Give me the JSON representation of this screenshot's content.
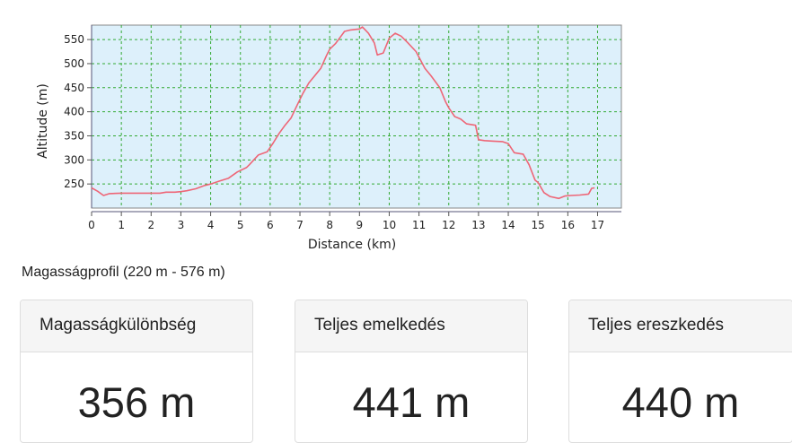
{
  "chart_data": {
    "type": "line",
    "xlabel": "Distance (km)",
    "ylabel": "Altitude (m)",
    "xlim": [
      0,
      17.8
    ],
    "ylim": [
      200,
      580
    ],
    "x_ticks": [
      0,
      1,
      2,
      3,
      4,
      5,
      6,
      7,
      8,
      9,
      10,
      11,
      12,
      13,
      14,
      15,
      16,
      17
    ],
    "y_ticks": [
      250,
      300,
      350,
      400,
      450,
      500,
      550
    ],
    "grid": true,
    "background_color": "#ddf0fb",
    "line_color": "#ee6677",
    "grid_color": "#33aa33",
    "series": [
      {
        "x": [
          0.0,
          0.2,
          0.4,
          0.6,
          1.0,
          1.4,
          1.6,
          2.0,
          2.3,
          2.5,
          2.8,
          3.0,
          3.2,
          3.5,
          3.8,
          4.0,
          4.3,
          4.6,
          4.9,
          5.2,
          5.3,
          5.6,
          5.9,
          6.1,
          6.3,
          6.5,
          6.7,
          6.9,
          7.1,
          7.3,
          7.5,
          7.7,
          7.9,
          8.0,
          8.2,
          8.5,
          8.7,
          9.0,
          9.1,
          9.3,
          9.5,
          9.6,
          9.8,
          10.0,
          10.2,
          10.4,
          10.6,
          10.9,
          11.2,
          11.4,
          11.7,
          11.9,
          12.0,
          12.2,
          12.4,
          12.6,
          12.9,
          13.0,
          13.2,
          13.5,
          13.8,
          14.0,
          14.2,
          14.5,
          14.7,
          14.9,
          15.0,
          15.2,
          15.4,
          15.7,
          15.9,
          16.1,
          16.4,
          16.7,
          16.8,
          16.9
        ],
        "y": [
          242,
          235,
          226,
          230,
          231,
          231,
          231,
          231,
          231,
          233,
          233,
          234,
          236,
          240,
          247,
          250,
          256,
          262,
          275,
          284,
          290,
          310,
          317,
          335,
          355,
          372,
          387,
          413,
          438,
          460,
          475,
          490,
          518,
          530,
          542,
          567,
          570,
          572,
          576,
          563,
          543,
          518,
          522,
          553,
          563,
          557,
          545,
          525,
          490,
          475,
          450,
          420,
          408,
          390,
          385,
          375,
          372,
          342,
          340,
          339,
          338,
          334,
          315,
          312,
          290,
          258,
          253,
          232,
          224,
          220,
          225,
          226,
          227,
          229,
          241,
          242
        ]
      }
    ]
  },
  "profile_caption": "Magasságprofil (220 m - 576 m)",
  "stats": [
    {
      "label": "Magasságkülönbség",
      "value": "356 m"
    },
    {
      "label": "Teljes emelkedés",
      "value": "441 m"
    },
    {
      "label": "Teljes ereszkedés",
      "value": "440 m"
    }
  ]
}
